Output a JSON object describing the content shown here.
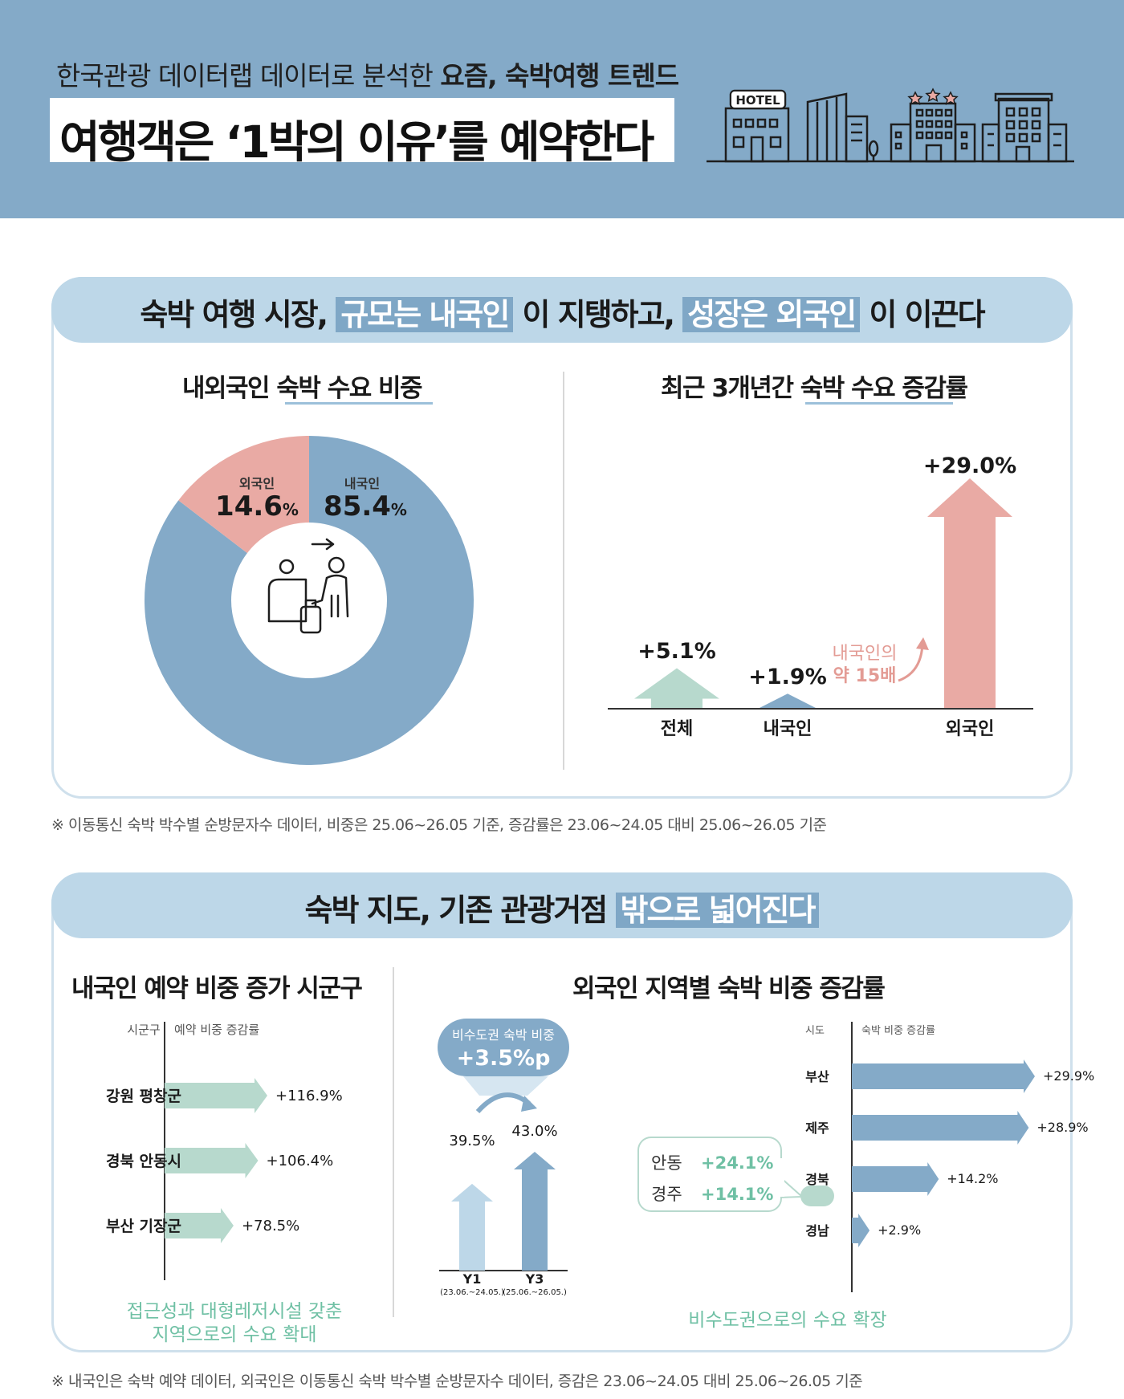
{
  "header": {
    "subtitle_plain": "한국관광 데이터랩 데이터로 분석한 ",
    "subtitle_bold": "요즘, 숙박여행 트렌드",
    "title": "여행객은 ‘1박의 이유’를 예약한다",
    "hotel_sign": "HOTEL"
  },
  "section1": {
    "head_parts": [
      "숙박 여행 시장, ",
      "규모는 내국인",
      " 이 지탱하고, ",
      "성장은 외국인",
      " 이 이끈다"
    ],
    "left_title": "내외국인 숙박 수요 비중",
    "right_title": "최근 3개년간 숙박 수요 증감률",
    "note": "※ 이동통신 숙박 박수별 순방문자수 데이터, 비중은 25.06~26.05 기준, 증감률은 23.06~24.05 대비 25.06~26.05 기준"
  },
  "section2": {
    "head_parts": [
      "숙박 지도, 기존 관광거점 ",
      "밖으로 넓어진다"
    ],
    "left_title": "내국인 예약 비중 증가 시군구",
    "right_title": "외국인 지역별 숙박 비중 증감률",
    "left_caption_1": "접근성과 대형레저시설 갖춘",
    "left_caption_2": "지역으로의 수요 확대",
    "right_caption": "비수도권으로의 수요 확장",
    "note": "※ 내국인은 숙박 예약 데이터,  외국인은 이동통신 숙박 박수별 순방문자수 데이터, 증감은 23.06~24.05 대비 25.06~26.05 기준"
  },
  "chart_data": [
    {
      "type": "pie",
      "labels": [
        "내국인",
        "외국인"
      ],
      "values": [
        85.4,
        14.6
      ],
      "value_labels": [
        "85.4",
        "14.6"
      ],
      "unit": "%",
      "colors": [
        "#84aac8",
        "#e9aaa4"
      ]
    },
    {
      "type": "bar",
      "categories": [
        "전체",
        "내국인",
        "외국인"
      ],
      "values": [
        5.1,
        1.9,
        29.0
      ],
      "value_labels": [
        "+5.1%",
        "+1.9%",
        "+29.0%"
      ],
      "colors": [
        "#b7d9cd",
        "#84aac8",
        "#e9aaa4"
      ],
      "annotation_1": "내국인의",
      "annotation_2": "약 15배"
    },
    {
      "type": "bar",
      "orientation": "horizontal",
      "col_headers": [
        "시군구",
        "예약 비중 증감률"
      ],
      "categories": [
        "강원 평창군",
        "경북 안동시",
        "부산 기장군"
      ],
      "values": [
        116.9,
        106.4,
        78.5
      ],
      "value_labels": [
        "+116.9%",
        "+106.4%",
        "+78.5%"
      ],
      "color": "#b7d9cd"
    },
    {
      "type": "bar",
      "categories": [
        "Y1",
        "Y3"
      ],
      "sublabels": [
        "(23.06.~24.05.)",
        "(25.06.~26.05.)"
      ],
      "values": [
        39.5,
        43.0
      ],
      "value_labels": [
        "39.5%",
        "43.0%"
      ],
      "colors": [
        "#bdd7e8",
        "#84aac8"
      ],
      "callout_title": "비수도권 숙박 비중",
      "callout_value": "+3.5%p"
    },
    {
      "type": "bar",
      "orientation": "horizontal",
      "col_headers": [
        "시도",
        "숙박 비중 증감률"
      ],
      "categories": [
        "부산",
        "제주",
        "경북",
        "경남"
      ],
      "values": [
        29.9,
        28.9,
        14.2,
        2.9
      ],
      "value_labels": [
        "+29.9%",
        "+28.9%",
        "+14.2%",
        "+2.9%"
      ],
      "color": "#84aac8",
      "detail": [
        {
          "name": "안동",
          "value": "+24.1%"
        },
        {
          "name": "경주",
          "value": "+14.1%"
        }
      ]
    }
  ]
}
